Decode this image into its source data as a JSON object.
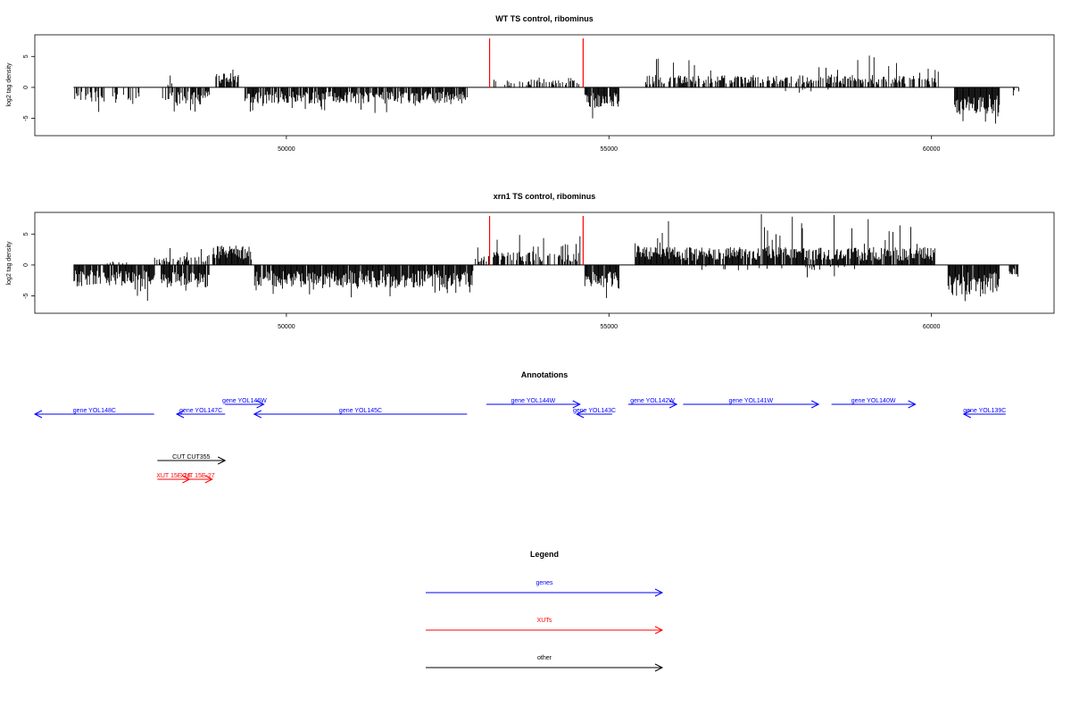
{
  "colors": {
    "gene": "#0000ff",
    "xut": "#ff0000",
    "other": "#000000",
    "marker": "#ff0000",
    "bars": "#000000"
  },
  "chart_data": [
    {
      "type": "bar",
      "title": "WT TS control, ribominus",
      "ylabel": "log2 tag density",
      "xlim": [
        46100,
        61900
      ],
      "ylim": [
        -7.8,
        8.5
      ],
      "xticks": [
        50000,
        55000,
        60000
      ],
      "xtick_labels": [
        "50000",
        "55000",
        "60000"
      ],
      "yticks": [
        -5,
        0,
        5
      ],
      "ytick_labels": [
        "-5",
        "0",
        "5"
      ],
      "grid": false,
      "marker_lines_x": [
        53150,
        54600
      ],
      "baseline_x": [
        46700,
        61350
      ],
      "segments": [
        {
          "x": [
            46700,
            47200
          ],
          "sign": -1,
          "typ": 1.6,
          "max": 4.6,
          "density": 0.45
        },
        {
          "x": [
            47300,
            47800
          ],
          "sign": -1,
          "typ": 1.4,
          "max": 3.4,
          "density": 0.3
        },
        {
          "x": [
            48000,
            48250
          ],
          "sign": 1,
          "typ": 0.5,
          "max": 2.0,
          "density": 0.2
        },
        {
          "x": [
            48050,
            48700
          ],
          "sign": -1,
          "typ": 1.9,
          "max": 4.3,
          "density": 0.6
        },
        {
          "x": [
            48700,
            48800
          ],
          "sign": -1,
          "typ": 1.2,
          "max": 2.5,
          "density": 0.6
        },
        {
          "x": [
            48900,
            49250
          ],
          "sign": 1,
          "typ": 1.6,
          "max": 3.2,
          "density": 0.85
        },
        {
          "x": [
            49350,
            52800
          ],
          "sign": -1,
          "typ": 1.8,
          "max": 4.5,
          "density": 0.85
        },
        {
          "x": [
            53200,
            53900
          ],
          "sign": 1,
          "typ": 0.9,
          "max": 2.4,
          "density": 0.35
        },
        {
          "x": [
            53900,
            54550
          ],
          "sign": 1,
          "typ": 1.1,
          "max": 3.9,
          "density": 0.5
        },
        {
          "x": [
            54620,
            55150
          ],
          "sign": -1,
          "typ": 2.3,
          "max": 5.3,
          "density": 0.9
        },
        {
          "x": [
            55550,
            60100
          ],
          "sign": 1,
          "typ": 1.4,
          "max": 5.4,
          "density": 0.6
        },
        {
          "x": [
            57550,
            58400
          ],
          "sign": -1,
          "typ": 0.6,
          "max": 2.3,
          "density": 0.1
        },
        {
          "x": [
            60350,
            61050
          ],
          "sign": -1,
          "typ": 3.0,
          "max": 6.0,
          "density": 0.95
        },
        {
          "x": [
            61250,
            61350
          ],
          "sign": -1,
          "typ": 1.0,
          "max": 1.6,
          "density": 0.6
        }
      ]
    },
    {
      "type": "bar",
      "title": "xrn1 TS control, ribominus",
      "ylabel": "log2 tag density",
      "xlim": [
        46100,
        61900
      ],
      "ylim": [
        -7.8,
        8.5
      ],
      "xticks": [
        50000,
        55000,
        60000
      ],
      "xtick_labels": [
        "50000",
        "55000",
        "60000"
      ],
      "yticks": [
        -5,
        0,
        5
      ],
      "ytick_labels": [
        "-5",
        "0",
        "5"
      ],
      "grid": false,
      "marker_lines_x": [
        53150,
        54600
      ],
      "baseline_x": [
        46700,
        61350
      ],
      "segments": [
        {
          "x": [
            46700,
            47950
          ],
          "sign": -1,
          "typ": 2.4,
          "max": 5.8,
          "density": 0.9
        },
        {
          "x": [
            47000,
            47600
          ],
          "sign": 1,
          "typ": 0.4,
          "max": 1.0,
          "density": 0.15
        },
        {
          "x": [
            47950,
            48250
          ],
          "sign": 1,
          "typ": 0.9,
          "max": 2.8,
          "density": 0.5
        },
        {
          "x": [
            48050,
            48800
          ],
          "sign": -1,
          "typ": 2.5,
          "max": 6.0,
          "density": 0.9
        },
        {
          "x": [
            48300,
            48800
          ],
          "sign": 1,
          "typ": 1.0,
          "max": 2.7,
          "density": 0.6
        },
        {
          "x": [
            48850,
            49450
          ],
          "sign": 1,
          "typ": 2.2,
          "max": 4.5,
          "density": 0.95
        },
        {
          "x": [
            49500,
            52900
          ],
          "sign": -1,
          "typ": 2.5,
          "max": 5.3,
          "density": 0.95
        },
        {
          "x": [
            52900,
            53150
          ],
          "sign": 1,
          "typ": 1.0,
          "max": 3.0,
          "density": 0.5
        },
        {
          "x": [
            53200,
            54550
          ],
          "sign": 1,
          "typ": 1.5,
          "max": 5.2,
          "density": 0.6
        },
        {
          "x": [
            54620,
            55150
          ],
          "sign": -1,
          "typ": 2.8,
          "max": 5.8,
          "density": 0.95
        },
        {
          "x": [
            55400,
            60050
          ],
          "sign": 1,
          "typ": 2.0,
          "max": 8.3,
          "density": 0.9
        },
        {
          "x": [
            56400,
            58800
          ],
          "sign": -1,
          "typ": 0.6,
          "max": 2.2,
          "density": 0.08
        },
        {
          "x": [
            60250,
            61050
          ],
          "sign": -1,
          "typ": 3.3,
          "max": 7.1,
          "density": 0.95
        },
        {
          "x": [
            61200,
            61350
          ],
          "sign": -1,
          "typ": 1.3,
          "max": 2.2,
          "density": 0.7
        }
      ]
    }
  ],
  "annotations": {
    "title": "Annotations",
    "xlim": [
      46100,
      61900
    ],
    "genes": [
      {
        "label": "gene YOL148C",
        "start": 46100,
        "end": 47950,
        "direction": "left",
        "row": 1
      },
      {
        "label": "gene YOL147C",
        "start": 48300,
        "end": 49050,
        "direction": "left",
        "row": 1
      },
      {
        "label": "gene YOL146W",
        "start": 49050,
        "end": 49650,
        "direction": "right",
        "row": 0
      },
      {
        "label": "gene YOL145C",
        "start": 49500,
        "end": 52800,
        "direction": "left",
        "row": 1
      },
      {
        "label": "gene YOL144W",
        "start": 53100,
        "end": 54550,
        "direction": "right",
        "row": 0
      },
      {
        "label": "gene YOL143C",
        "start": 54500,
        "end": 55050,
        "direction": "left",
        "row": 1
      },
      {
        "label": "gene YOL142W",
        "start": 55300,
        "end": 56050,
        "direction": "right",
        "row": 0
      },
      {
        "label": "gene YOL141W",
        "start": 56150,
        "end": 58250,
        "direction": "right",
        "row": 0
      },
      {
        "label": "gene YOL140W",
        "start": 58450,
        "end": 59750,
        "direction": "right",
        "row": 0
      },
      {
        "label": "gene YOL139C",
        "start": 60500,
        "end": 61150,
        "direction": "left",
        "row": 1
      }
    ],
    "others": [
      {
        "label": "CUT CUT355",
        "start": 48000,
        "end": 49050,
        "direction": "right"
      }
    ],
    "xuts": [
      {
        "label": "XUT 15E-26",
        "start": 48000,
        "end": 48500,
        "direction": "right"
      },
      {
        "label": "XUT 15E-27",
        "start": 48400,
        "end": 48850,
        "direction": "right"
      }
    ]
  },
  "legend": {
    "title": "Legend",
    "items": [
      {
        "label": "genes",
        "kind": "gene"
      },
      {
        "label": "XUTs",
        "kind": "xut"
      },
      {
        "label": "other",
        "kind": "other"
      }
    ]
  }
}
